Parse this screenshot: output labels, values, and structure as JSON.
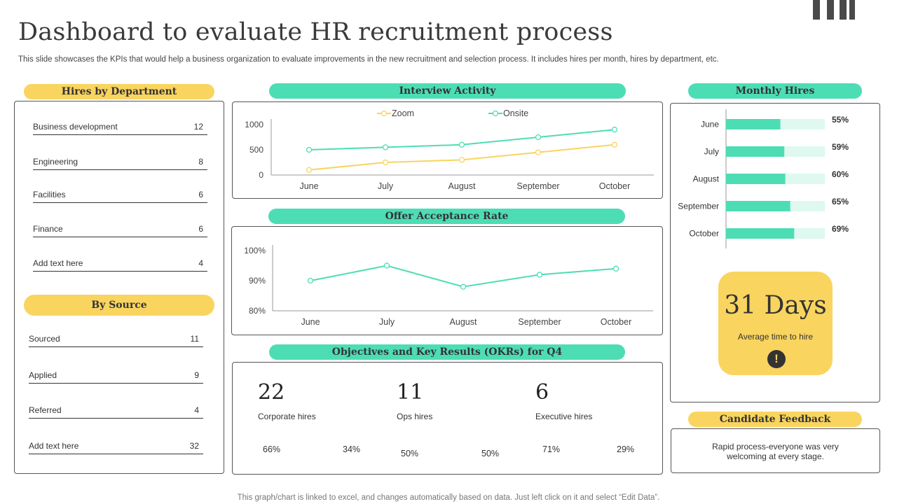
{
  "header": {
    "title": "Dashboard to evaluate HR recruitment process",
    "subtitle": "This slide showcases the KPIs that would help a business organization to evaluate improvements in the new recruitment and selection process. It includes hires per month, hires by department, etc."
  },
  "hires_by_department": {
    "heading": "Hires by Department",
    "rows": [
      {
        "label": "Business development",
        "value": "12"
      },
      {
        "label": "Engineering",
        "value": "8"
      },
      {
        "label": "Facilities",
        "value": "6"
      },
      {
        "label": "Finance",
        "value": "6"
      },
      {
        "label": "Add text here",
        "value": "4"
      }
    ]
  },
  "by_source": {
    "heading": "By Source",
    "rows": [
      {
        "label": "Sourced",
        "value": "11"
      },
      {
        "label": "Applied",
        "value": "9"
      },
      {
        "label": "Referred",
        "value": "4"
      },
      {
        "label": "Add text here",
        "value": "32"
      }
    ]
  },
  "interview_activity": {
    "heading": "Interview Activity"
  },
  "offer_acceptance": {
    "heading": "Offer Acceptance Rate"
  },
  "okrs": {
    "heading": "Objectives and Key Results (OKRs) for Q4",
    "items": [
      {
        "value": "22",
        "label": "Corporate hires",
        "pct_a": "66%",
        "pct_b": "34%"
      },
      {
        "value": "11",
        "label": "Ops hires",
        "pct_a": "50%",
        "pct_b": "50%"
      },
      {
        "value": "6",
        "label": "Executive hires",
        "pct_a": "71%",
        "pct_b": "29%"
      }
    ]
  },
  "monthly_hires": {
    "heading": "Monthly Hires"
  },
  "time_to_hire": {
    "value": "31 Days",
    "label": "Average  time to hire",
    "icon": "alert-icon"
  },
  "candidate_feedback": {
    "heading": "Candidate Feedback",
    "text": "Rapid process-everyone was very welcoming at every stage."
  },
  "footer": {
    "note": "This graph/chart is linked to excel,  and changes automatically based on data. Just left click on it and select “Edit Data”."
  },
  "colors": {
    "yellow": "#f9d45f",
    "teal": "#4dddb5",
    "teal_light": "#dff8f0",
    "line_yellow": "#f9d45f",
    "line_teal": "#4dddb5"
  },
  "chart_data": [
    {
      "type": "line",
      "title": "Interview Activity",
      "categories": [
        "June",
        "July",
        "August",
        "September",
        "October"
      ],
      "series": [
        {
          "name": "Zoom",
          "values": [
            100,
            250,
            300,
            450,
            600
          ],
          "color": "#f9d45f"
        },
        {
          "name": "Onsite",
          "values": [
            500,
            550,
            600,
            750,
            900
          ],
          "color": "#4dddb5"
        }
      ],
      "yticks": [
        "0",
        "500",
        "1000"
      ],
      "ylim": [
        0,
        1000
      ],
      "legend": "top"
    },
    {
      "type": "line",
      "title": "Offer Acceptance Rate",
      "categories": [
        "June",
        "July",
        "August",
        "September",
        "October"
      ],
      "series": [
        {
          "values": [
            90,
            95,
            88,
            92,
            94
          ],
          "color": "#4dddb5"
        }
      ],
      "yticks": [
        "80%",
        "90%",
        "100%"
      ],
      "ylim": [
        80,
        100
      ]
    },
    {
      "type": "bar",
      "orientation": "horizontal",
      "title": "Monthly Hires",
      "categories": [
        "June",
        "July",
        "August",
        "September",
        "October"
      ],
      "values": [
        55,
        59,
        60,
        65,
        69
      ],
      "value_labels": [
        "55%",
        "59%",
        "60%",
        "65%",
        "69%"
      ],
      "xlim": [
        0,
        100
      ]
    }
  ]
}
